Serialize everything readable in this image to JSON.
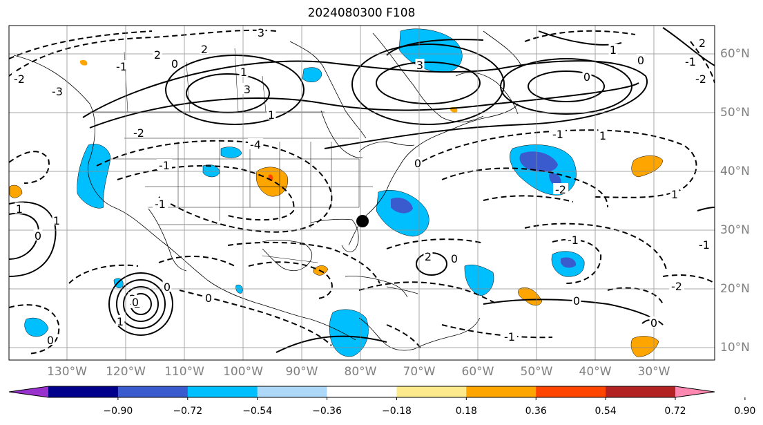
{
  "title": "2024080300 F108",
  "map": {
    "projection": "plate-carree",
    "lon_labels": [
      "130°W",
      "120°W",
      "110°W",
      "100°W",
      "90°W",
      "80°W",
      "70°W",
      "60°W",
      "50°W",
      "40°W",
      "30°W"
    ],
    "lat_labels": [
      "60°N",
      "50°N",
      "40°N",
      "30°N",
      "20°N",
      "10°N"
    ],
    "marker": "filled-circle",
    "contour_labels": [
      "3",
      "2",
      "2",
      "-1",
      "0",
      "-2",
      "1",
      "3",
      "1",
      "-2",
      "-3",
      "-1",
      "-4",
      "0",
      "3",
      "1",
      "2",
      "0",
      "-1",
      "-2",
      "-1",
      "1",
      "0",
      "-2",
      "1",
      "1",
      "1",
      "0",
      "-1",
      "2",
      "0",
      "1",
      "-2",
      "0",
      "2",
      "0",
      "-1",
      "-2",
      "0",
      "0",
      "-1",
      "0",
      "-1",
      "0"
    ]
  },
  "colorbar": {
    "ticks": [
      "−0.90",
      "−0.72",
      "−0.54",
      "−0.36",
      "−0.18",
      "0.18",
      "0.36",
      "0.54",
      "0.72",
      "0.90"
    ],
    "colors": [
      "#9932cc",
      "#00008b",
      "#3a5bcd",
      "#00bfff",
      "#add8f7",
      "#ffffff",
      "#fdea8c",
      "#ffa500",
      "#ff4500",
      "#b22222",
      "#ff88b0"
    ]
  }
}
